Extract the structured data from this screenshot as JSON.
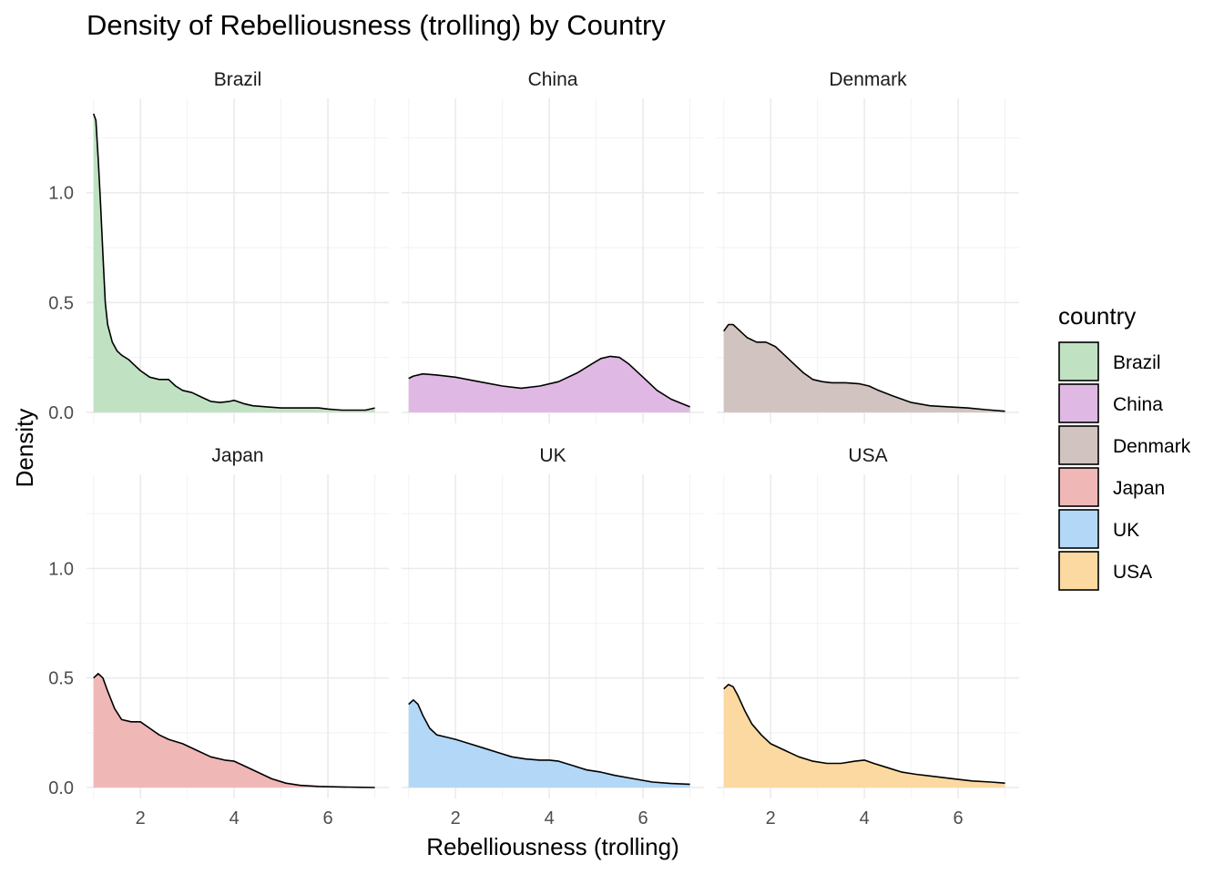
{
  "chart_data": {
    "type": "area",
    "title": "Density of Rebelliousness (trolling) by Country",
    "xlabel": "Rebelliousness (trolling)",
    "ylabel": "Density",
    "xlim": [
      0.85,
      7.3
    ],
    "ylim": [
      -0.05,
      1.43
    ],
    "x_ticks": [
      2,
      4,
      6
    ],
    "x_tick_labels": [
      "2",
      "4",
      "6"
    ],
    "y_ticks": [
      0.0,
      0.5,
      1.0
    ],
    "y_tick_labels": [
      "0.0",
      "0.5",
      "1.0"
    ],
    "y_minor_ticks": [
      0.25,
      0.75,
      1.25
    ],
    "x_minor_ticks": [
      1,
      3,
      5,
      7
    ],
    "grid": true,
    "legend": {
      "title": "country",
      "position": "right"
    },
    "facets": [
      "Brazil",
      "China",
      "Denmark",
      "Japan",
      "UK",
      "USA"
    ],
    "series": [
      {
        "name": "Brazil",
        "color": "#c0e2c3",
        "x": [
          1.0,
          1.05,
          1.1,
          1.15,
          1.2,
          1.25,
          1.3,
          1.4,
          1.5,
          1.6,
          1.75,
          1.9,
          2.0,
          2.2,
          2.4,
          2.6,
          2.75,
          2.9,
          3.1,
          3.3,
          3.5,
          3.7,
          3.9,
          4.0,
          4.2,
          4.4,
          4.7,
          5.0,
          5.3,
          5.5,
          5.8,
          6.0,
          6.3,
          6.6,
          6.8,
          7.0
        ],
        "y": [
          1.36,
          1.33,
          1.15,
          0.95,
          0.72,
          0.5,
          0.4,
          0.32,
          0.28,
          0.26,
          0.24,
          0.21,
          0.19,
          0.16,
          0.15,
          0.15,
          0.12,
          0.1,
          0.09,
          0.07,
          0.05,
          0.045,
          0.05,
          0.055,
          0.04,
          0.03,
          0.025,
          0.02,
          0.02,
          0.02,
          0.02,
          0.015,
          0.01,
          0.01,
          0.01,
          0.02
        ]
      },
      {
        "name": "China",
        "color": "#dfb8e3",
        "x": [
          1.0,
          1.1,
          1.3,
          1.6,
          2.0,
          2.5,
          3.0,
          3.4,
          3.8,
          4.2,
          4.6,
          4.9,
          5.1,
          5.3,
          5.5,
          5.7,
          6.0,
          6.3,
          6.6,
          7.0
        ],
        "y": [
          0.155,
          0.165,
          0.175,
          0.17,
          0.16,
          0.14,
          0.12,
          0.11,
          0.12,
          0.14,
          0.18,
          0.22,
          0.245,
          0.255,
          0.25,
          0.22,
          0.16,
          0.1,
          0.06,
          0.025
        ]
      },
      {
        "name": "Denmark",
        "color": "#d1c3bf",
        "x": [
          1.0,
          1.1,
          1.2,
          1.3,
          1.5,
          1.7,
          1.9,
          2.1,
          2.3,
          2.5,
          2.7,
          2.9,
          3.1,
          3.3,
          3.6,
          3.9,
          4.1,
          4.3,
          4.6,
          5.0,
          5.4,
          5.8,
          6.2,
          6.6,
          7.0
        ],
        "y": [
          0.37,
          0.4,
          0.4,
          0.38,
          0.34,
          0.32,
          0.32,
          0.3,
          0.26,
          0.22,
          0.18,
          0.15,
          0.14,
          0.135,
          0.135,
          0.13,
          0.12,
          0.1,
          0.075,
          0.045,
          0.03,
          0.025,
          0.02,
          0.012,
          0.005
        ]
      },
      {
        "name": "Japan",
        "color": "#f0b7b7",
        "x": [
          1.0,
          1.1,
          1.2,
          1.3,
          1.45,
          1.6,
          1.8,
          2.0,
          2.2,
          2.4,
          2.6,
          2.9,
          3.2,
          3.5,
          3.8,
          4.0,
          4.2,
          4.5,
          4.8,
          5.1,
          5.4,
          5.8,
          6.2,
          6.6,
          7.0
        ],
        "y": [
          0.5,
          0.52,
          0.5,
          0.44,
          0.36,
          0.31,
          0.3,
          0.3,
          0.27,
          0.24,
          0.22,
          0.2,
          0.17,
          0.14,
          0.125,
          0.12,
          0.1,
          0.07,
          0.04,
          0.02,
          0.01,
          0.005,
          0.003,
          0.001,
          0.0
        ]
      },
      {
        "name": "UK",
        "color": "#b3d7f7",
        "x": [
          1.0,
          1.1,
          1.2,
          1.3,
          1.45,
          1.6,
          1.8,
          2.0,
          2.3,
          2.6,
          2.9,
          3.2,
          3.5,
          3.8,
          4.0,
          4.2,
          4.5,
          4.8,
          5.1,
          5.4,
          5.8,
          6.2,
          6.6,
          7.0
        ],
        "y": [
          0.38,
          0.4,
          0.38,
          0.33,
          0.27,
          0.24,
          0.23,
          0.22,
          0.2,
          0.18,
          0.16,
          0.14,
          0.13,
          0.125,
          0.125,
          0.12,
          0.1,
          0.08,
          0.07,
          0.055,
          0.04,
          0.025,
          0.018,
          0.015
        ]
      },
      {
        "name": "USA",
        "color": "#fbd9a1",
        "x": [
          1.0,
          1.1,
          1.2,
          1.3,
          1.45,
          1.6,
          1.8,
          2.0,
          2.3,
          2.6,
          2.9,
          3.2,
          3.5,
          3.8,
          4.0,
          4.2,
          4.5,
          4.8,
          5.1,
          5.5,
          5.9,
          6.3,
          6.7,
          7.0
        ],
        "y": [
          0.45,
          0.47,
          0.46,
          0.42,
          0.35,
          0.29,
          0.24,
          0.2,
          0.17,
          0.14,
          0.12,
          0.11,
          0.11,
          0.12,
          0.125,
          0.11,
          0.09,
          0.07,
          0.06,
          0.05,
          0.04,
          0.03,
          0.025,
          0.02
        ]
      }
    ]
  }
}
